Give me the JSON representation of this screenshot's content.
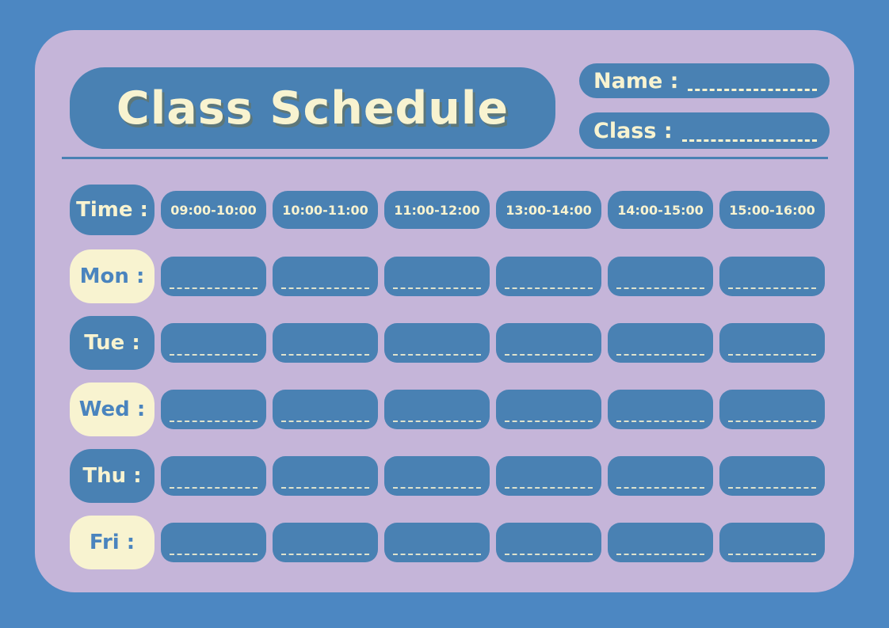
{
  "header": {
    "title": "Class Schedule",
    "name_label": "Name :",
    "name_value": "",
    "class_label": "Class :",
    "class_value": ""
  },
  "schedule": {
    "time_label": "Time :",
    "time_slots": [
      "09:00-10:00",
      "10:00-11:00",
      "11:00-12:00",
      "13:00-14:00",
      "14:00-15:00",
      "15:00-16:00"
    ],
    "days": [
      {
        "label": "Mon :",
        "style": "cream",
        "entries": [
          "",
          "",
          "",
          "",
          "",
          ""
        ]
      },
      {
        "label": "Tue :",
        "style": "blue",
        "entries": [
          "",
          "",
          "",
          "",
          "",
          ""
        ]
      },
      {
        "label": "Wed :",
        "style": "cream",
        "entries": [
          "",
          "",
          "",
          "",
          "",
          ""
        ]
      },
      {
        "label": "Thu :",
        "style": "blue",
        "entries": [
          "",
          "",
          "",
          "",
          "",
          ""
        ]
      },
      {
        "label": "Fri :",
        "style": "cream",
        "entries": [
          "",
          "",
          "",
          "",
          "",
          ""
        ]
      }
    ]
  },
  "colors": {
    "background": "#4C87C2",
    "panel": "#C5B5D9",
    "box_blue": "#4981B3",
    "cream": "#F8F3D0",
    "day_text_blue": "#4A84BE"
  }
}
